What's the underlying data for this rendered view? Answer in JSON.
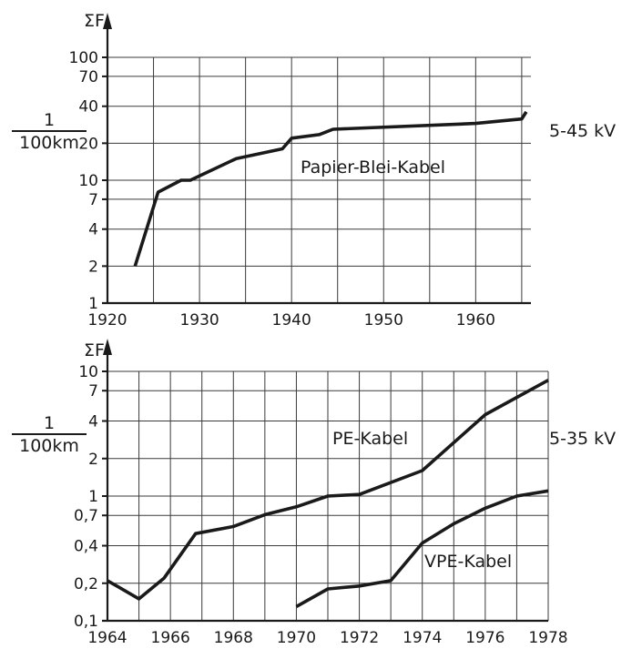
{
  "chart_data": [
    {
      "type": "line",
      "ylabel": "ΣF",
      "unit_numerator": "1",
      "unit_denominator": "100km",
      "voltage_label": "5-45 kV",
      "xlim": [
        1920,
        1966
      ],
      "ylim": [
        1,
        100
      ],
      "yscale": "log",
      "grid": true,
      "x_ticks": [
        1920,
        1925,
        1930,
        1935,
        1940,
        1945,
        1950,
        1955,
        1960,
        1965
      ],
      "x_tick_labels": [
        "1920",
        "1930",
        "1940",
        "1950",
        "1960"
      ],
      "x_tick_label_values": [
        1920,
        1930,
        1940,
        1950,
        1960
      ],
      "y_ticks": [
        1,
        2,
        4,
        7,
        10,
        20,
        40,
        70,
        100
      ],
      "y_tick_labels": [
        "1",
        "2",
        "4",
        "7",
        "10",
        "20",
        "40",
        "70",
        "100"
      ],
      "series": [
        {
          "name": "Papier-Blei-Kabel",
          "x": [
            1923,
            1925.5,
            1928,
            1929,
            1934,
            1939,
            1940,
            1943,
            1944.5,
            1960,
            1965,
            1965.5
          ],
          "y": [
            2,
            8,
            10,
            10,
            15,
            18,
            22,
            23.5,
            26,
            29,
            31.5,
            36
          ]
        }
      ]
    },
    {
      "type": "line",
      "ylabel": "ΣF",
      "unit_numerator": "1",
      "unit_denominator": "100km",
      "voltage_label": "5-35 kV",
      "xlim": [
        1964,
        1978
      ],
      "ylim": [
        0.1,
        10
      ],
      "yscale": "log",
      "grid": true,
      "x_ticks": [
        1964,
        1965,
        1966,
        1967,
        1968,
        1969,
        1970,
        1971,
        1972,
        1973,
        1974,
        1975,
        1976,
        1977,
        1978
      ],
      "x_tick_labels": [
        "1964",
        "1966",
        "1968",
        "1970",
        "1972",
        "1974",
        "1976",
        "1978"
      ],
      "x_tick_label_values": [
        1964,
        1966,
        1968,
        1970,
        1972,
        1974,
        1976,
        1978
      ],
      "y_ticks": [
        0.1,
        0.2,
        0.4,
        0.7,
        1,
        2,
        4,
        7,
        10
      ],
      "y_tick_labels": [
        "0,1",
        "0,2",
        "0,4",
        "0,7",
        "1",
        "2",
        "4",
        "7",
        "10"
      ],
      "series": [
        {
          "name": "PE-Kabel",
          "x": [
            1964,
            1965,
            1965.8,
            1966.8,
            1968,
            1969,
            1970,
            1971,
            1972,
            1974,
            1976,
            1978
          ],
          "y": [
            0.21,
            0.15,
            0.22,
            0.5,
            0.57,
            0.71,
            0.82,
            1.0,
            1.03,
            1.6,
            4.5,
            8.5
          ]
        },
        {
          "name": "VPE-Kabel",
          "x": [
            1970,
            1971,
            1972,
            1973,
            1974,
            1975,
            1976,
            1977,
            1978
          ],
          "y": [
            0.13,
            0.18,
            0.19,
            0.21,
            0.42,
            0.6,
            0.8,
            1.0,
            1.1
          ]
        }
      ]
    }
  ]
}
